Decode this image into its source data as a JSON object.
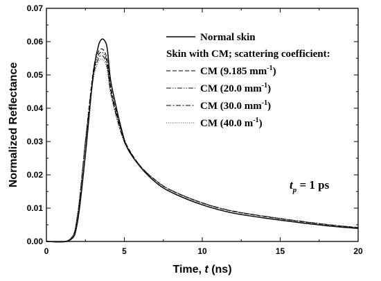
{
  "chart_data": {
    "type": "line",
    "xlabel": "Time, t (ns)",
    "xlabel_parts": [
      "Time, ",
      "t",
      " (ns)"
    ],
    "ylabel": "Normalized Reflectance",
    "xlim": [
      0,
      20
    ],
    "ylim": [
      0,
      0.07
    ],
    "xticks": [
      0,
      5,
      10,
      15,
      20
    ],
    "xtick_labels": [
      "0",
      "5",
      "10",
      "15",
      "20"
    ],
    "yticks": [
      0,
      0.01,
      0.02,
      0.03,
      0.04,
      0.05,
      0.06,
      0.07
    ],
    "ytick_labels": [
      "0.00",
      "0.01",
      "0.02",
      "0.03",
      "0.04",
      "0.05",
      "0.06",
      "0.07"
    ],
    "legend_placement": "top-right",
    "legend_heading": "Skin with CM; scattering coefficient:",
    "annotation": {
      "main": "t",
      "sub": "p",
      "rest": " = 1 ps"
    },
    "series": [
      {
        "name": "Normal skin",
        "label_main": "Normal skin",
        "style": "solid",
        "x": [
          0,
          1.5,
          2,
          2.5,
          3,
          3.3,
          3.5,
          3.7,
          3.9,
          4.1,
          4.4,
          4.8,
          5.2,
          6,
          7,
          8,
          10,
          12,
          15,
          18,
          20
        ],
        "y": [
          0,
          0.0004,
          0.006,
          0.026,
          0.05,
          0.058,
          0.0605,
          0.0605,
          0.058,
          0.049,
          0.042,
          0.034,
          0.028,
          0.0225,
          0.0178,
          0.0148,
          0.011,
          0.0085,
          0.0064,
          0.0047,
          0.0039
        ]
      },
      {
        "name": "CM (9.185 mm-1)",
        "label_main": "CM (9.185  mm",
        "label_sup": "-1",
        "label_end": ")",
        "style": "dash",
        "x": [
          0,
          1.5,
          2,
          2.5,
          3,
          3.3,
          3.5,
          3.7,
          3.9,
          4.1,
          4.4,
          4.8,
          5.2,
          6,
          7,
          8,
          10,
          12,
          15,
          18,
          20
        ],
        "y": [
          0,
          0.0006,
          0.008,
          0.03,
          0.051,
          0.0565,
          0.0578,
          0.0572,
          0.0545,
          0.047,
          0.0405,
          0.0335,
          0.0285,
          0.0228,
          0.0183,
          0.0153,
          0.0115,
          0.009,
          0.0068,
          0.005,
          0.0041
        ]
      },
      {
        "name": "CM (20.0 mm-1)",
        "label_main": "CM (20.0  mm",
        "label_sup": "-1",
        "label_end": ")",
        "style": "dashdotdot",
        "x": [
          0,
          1.5,
          2,
          2.5,
          3,
          3.3,
          3.5,
          3.7,
          3.9,
          4.1,
          4.4,
          4.8,
          5.2,
          6,
          7,
          8,
          10,
          12,
          15,
          18,
          20
        ],
        "y": [
          0,
          0.0006,
          0.008,
          0.03,
          0.05,
          0.0555,
          0.0568,
          0.0562,
          0.0535,
          0.0462,
          0.0398,
          0.033,
          0.0283,
          0.0228,
          0.0184,
          0.0154,
          0.0116,
          0.0091,
          0.0069,
          0.0051,
          0.0042
        ]
      },
      {
        "name": "CM (30.0 mm-1)",
        "label_main": "CM (30.0  mm",
        "label_sup": "-1",
        "label_end": ")",
        "style": "dashdot",
        "x": [
          0,
          1.5,
          2,
          2.5,
          3,
          3.3,
          3.5,
          3.7,
          3.9,
          4.1,
          4.4,
          4.8,
          5.2,
          6,
          7,
          8,
          10,
          12,
          15,
          18,
          20
        ],
        "y": [
          0,
          0.0006,
          0.008,
          0.0295,
          0.0492,
          0.0545,
          0.0558,
          0.0552,
          0.0525,
          0.0455,
          0.0393,
          0.0326,
          0.028,
          0.0227,
          0.0184,
          0.0154,
          0.0116,
          0.0091,
          0.0069,
          0.0051,
          0.0042
        ]
      },
      {
        "name": "CM (40.0 m-1)",
        "label_main": "CM (40.0  m",
        "label_sup": "-1",
        "label_end": ")",
        "style": "dotted",
        "x": [
          0,
          1.5,
          2,
          2.5,
          3,
          3.3,
          3.5,
          3.7,
          3.9,
          4.1,
          4.4,
          4.8,
          5.2,
          6,
          7,
          8,
          10,
          12,
          15,
          18,
          20
        ],
        "y": [
          0,
          0.0006,
          0.0078,
          0.029,
          0.0482,
          0.0535,
          0.0548,
          0.0542,
          0.0515,
          0.0448,
          0.0388,
          0.0322,
          0.0277,
          0.0226,
          0.0183,
          0.0154,
          0.0116,
          0.0091,
          0.0069,
          0.0051,
          0.0042
        ]
      }
    ]
  }
}
